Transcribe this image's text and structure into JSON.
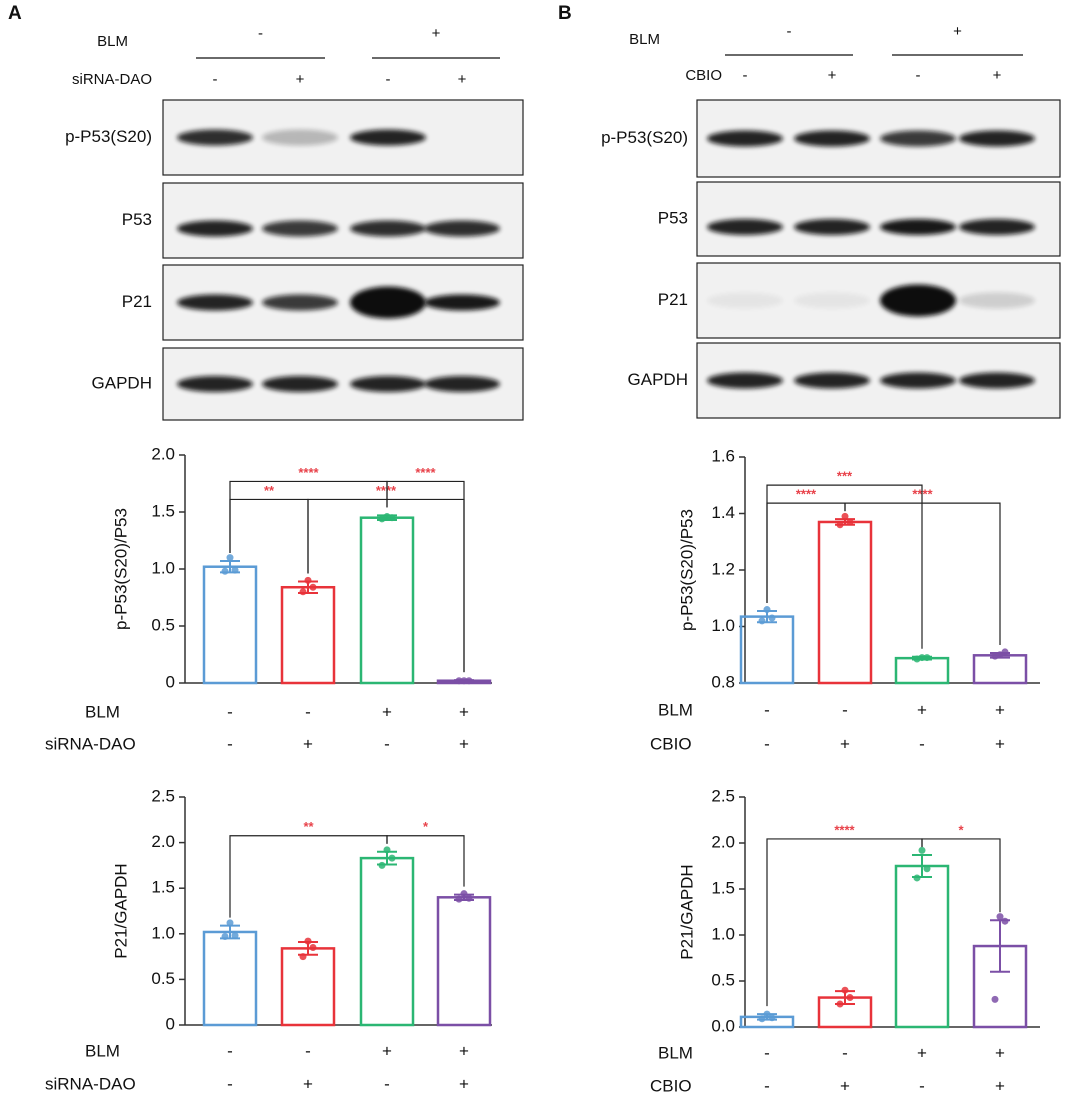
{
  "blots": [
    {
      "label": "A",
      "conditions": [
        {
          "name": "BLM",
          "groups": [
            "-",
            "+"
          ]
        },
        {
          "name": "siRNA-DAO",
          "lanes": [
            "-",
            "+",
            "-",
            "+"
          ]
        }
      ],
      "bands": [
        "p-P53(S20)",
        "P53",
        "P21",
        "GAPDH"
      ]
    },
    {
      "label": "B",
      "conditions": [
        {
          "name": "BLM",
          "groups": [
            "-",
            "+"
          ]
        },
        {
          "name": "CBIO",
          "lanes": [
            "-",
            "+",
            "-",
            "+"
          ]
        }
      ],
      "bands": [
        "p-P53(S20)",
        "P53",
        "P21",
        "GAPDH"
      ]
    }
  ],
  "chart_data": [
    {
      "type": "bar",
      "y_label": "p-P53(S20)/P53",
      "ylim": [
        0,
        2
      ],
      "yticks": [
        0,
        0.5,
        {
          "value": 1,
          "label": "1.0"
        },
        1.5,
        {
          "value": 2,
          "label": "2.0"
        }
      ],
      "conditions": [
        {
          "name": "BLM",
          "values": [
            "-",
            "-",
            "+",
            "+"
          ]
        },
        {
          "name": "siRNA-DAO",
          "values": [
            "-",
            "+",
            "-",
            "+"
          ]
        }
      ],
      "colors": [
        "#5b9bd5",
        "#e8333a",
        "#2bb673",
        "#7b4fa6"
      ],
      "values": [
        1.02,
        0.84,
        1.45,
        0.02
      ],
      "errors": [
        0.05,
        0.05,
        0.02,
        0.005
      ],
      "points": [
        [
          1.1,
          0.98,
          0.99
        ],
        [
          0.9,
          0.8,
          0.84
        ],
        [
          1.46,
          1.44,
          1.45
        ],
        [
          0.02,
          0.02,
          0.02
        ]
      ],
      "significance": [
        {
          "from": 0,
          "to": 1,
          "label": "**"
        },
        {
          "from": 1,
          "to": 3,
          "label": "****"
        },
        {
          "from": 0,
          "to": 2,
          "label": "****"
        },
        {
          "from": 2,
          "to": 3,
          "label": "****"
        }
      ]
    },
    {
      "type": "bar",
      "y_label": "P21/GAPDH",
      "ylim": [
        0,
        2.5
      ],
      "yticks": [
        0,
        0.5,
        {
          "value": 1,
          "label": "1.0"
        },
        1.5,
        {
          "value": 2,
          "label": "2.0"
        },
        2.5
      ],
      "conditions": [
        {
          "name": "BLM",
          "values": [
            "-",
            "-",
            "+",
            "+"
          ]
        },
        {
          "name": "siRNA-DAO",
          "values": [
            "-",
            "+",
            "-",
            "+"
          ]
        }
      ],
      "colors": [
        "#5b9bd5",
        "#e8333a",
        "#2bb673",
        "#7b4fa6"
      ],
      "values": [
        1.02,
        0.84,
        1.83,
        1.4
      ],
      "errors": [
        0.07,
        0.07,
        0.07,
        0.03
      ],
      "points": [
        [
          1.12,
          0.97,
          0.98
        ],
        [
          0.92,
          0.75,
          0.85
        ],
        [
          1.92,
          1.75,
          1.83
        ],
        [
          1.44,
          1.38,
          1.39
        ]
      ],
      "significance": [
        {
          "from": 0,
          "to": 2,
          "label": "**"
        },
        {
          "from": 2,
          "to": 3,
          "label": "*"
        }
      ]
    },
    {
      "type": "bar",
      "y_label": "p-P53(S20)/P53",
      "ylim": [
        0.8,
        1.6
      ],
      "yticks": [
        0.8,
        {
          "value": 1,
          "label": "1.0"
        },
        1.2,
        1.4,
        1.6
      ],
      "conditions": [
        {
          "name": "BLM",
          "values": [
            "-",
            "-",
            "+",
            "+"
          ]
        },
        {
          "name": "CBIO",
          "values": [
            "-",
            "+",
            "-",
            "+"
          ]
        }
      ],
      "colors": [
        "#5b9bd5",
        "#e8333a",
        "#2bb673",
        "#7b4fa6"
      ],
      "values": [
        1.035,
        1.37,
        0.888,
        0.898
      ],
      "errors": [
        0.02,
        0.01,
        0.005,
        0.008
      ],
      "points": [
        [
          1.06,
          1.02,
          1.03
        ],
        [
          1.39,
          1.36,
          1.37
        ],
        [
          0.89,
          0.885,
          0.89
        ],
        [
          0.9,
          0.895,
          0.91
        ]
      ],
      "significance": [
        {
          "from": 0,
          "to": 1,
          "label": "****"
        },
        {
          "from": 1,
          "to": 3,
          "label": "****"
        },
        {
          "from": 0,
          "to": 2,
          "label": "***"
        }
      ]
    },
    {
      "type": "bar",
      "y_label": "P21/GAPDH",
      "ylim": [
        0,
        2.5
      ],
      "yticks": [
        {
          "value": 0,
          "label": "0.0"
        },
        0.5,
        {
          "value": 1,
          "label": "1.0"
        },
        1.5,
        {
          "value": 2,
          "label": "2.0"
        },
        2.5
      ],
      "conditions": [
        {
          "name": "BLM",
          "values": [
            "-",
            "-",
            "+",
            "+"
          ]
        },
        {
          "name": "CBIO",
          "values": [
            "-",
            "+",
            "-",
            "+"
          ]
        }
      ],
      "colors": [
        "#5b9bd5",
        "#e8333a",
        "#2bb673",
        "#7b4fa6"
      ],
      "values": [
        0.11,
        0.32,
        1.75,
        0.88
      ],
      "errors": [
        0.03,
        0.07,
        0.12,
        0.28
      ],
      "points": [
        [
          0.14,
          0.09,
          0.1
        ],
        [
          0.4,
          0.25,
          0.32
        ],
        [
          1.92,
          1.62,
          1.72
        ],
        [
          1.2,
          0.3,
          1.15
        ]
      ],
      "significance": [
        {
          "from": 0,
          "to": 2,
          "label": "****"
        },
        {
          "from": 2,
          "to": 3,
          "label": "*"
        }
      ]
    }
  ]
}
